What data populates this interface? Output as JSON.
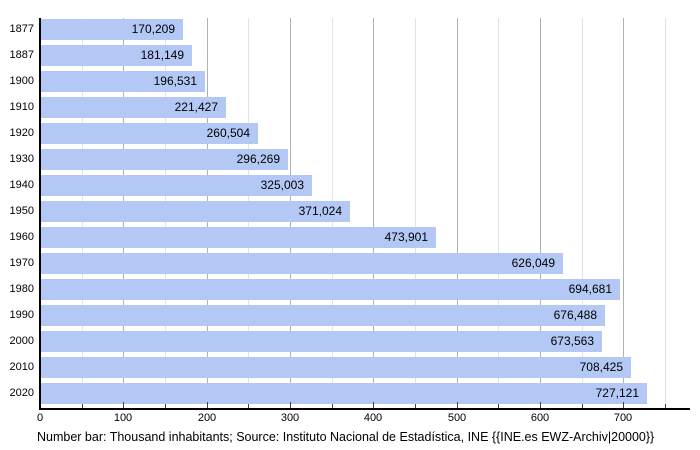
{
  "chart_data": {
    "type": "bar",
    "orientation": "horizontal",
    "title": "",
    "xlabel": "",
    "ylabel": "",
    "categories": [
      "1877",
      "1887",
      "1900",
      "1910",
      "1920",
      "1930",
      "1940",
      "1950",
      "1960",
      "1970",
      "1980",
      "1990",
      "2000",
      "2010",
      "2020"
    ],
    "values": [
      170209,
      181149,
      196531,
      221427,
      260504,
      296269,
      325003,
      371024,
      473901,
      626049,
      694681,
      676488,
      673563,
      708425,
      727121
    ],
    "value_labels": [
      "170,209",
      "181,149",
      "196,531",
      "221,427",
      "260,504",
      "296,269",
      "325,003",
      "371,024",
      "473,901",
      "626,049",
      "694,681",
      "676,488",
      "673,563",
      "708,425",
      "727,121"
    ],
    "value_scale_note": "bar axis units are thousands of inhabitants",
    "xlim": [
      0,
      780
    ],
    "x_major_ticks": [
      0,
      100,
      200,
      300,
      400,
      500,
      600,
      700
    ],
    "x_minor_step": 50,
    "x_grid_max": 750,
    "grid": true,
    "legend_position": "none",
    "bar_color": "#b3c8f5",
    "grid_major_color": "#b0b0b0",
    "grid_minor_color": "#e2e2e2",
    "axis_color": "#000000"
  },
  "caption": {
    "text": "Number bar: Thousand inhabitants; Source: Instituto Nacional de Estadística, INE {{INE.es EWZ-Archiv|20000}}"
  }
}
